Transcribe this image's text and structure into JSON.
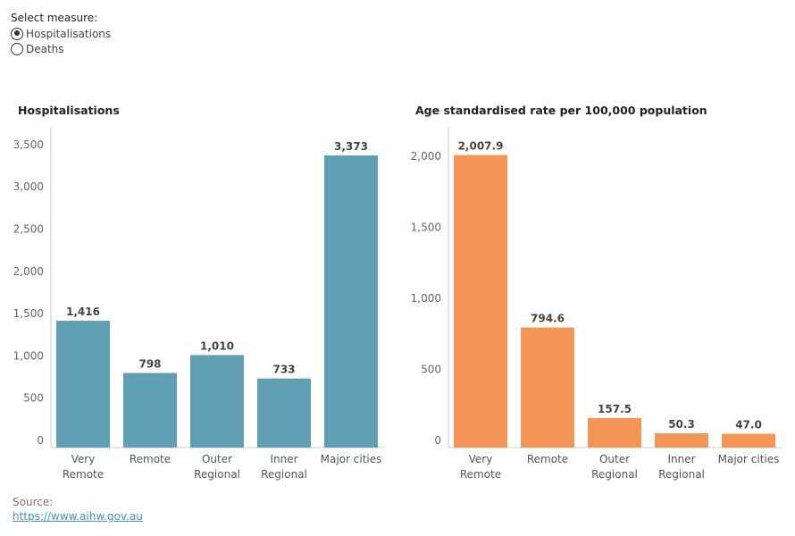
{
  "controls": {
    "title": "Select measure:",
    "options": [
      {
        "label": "Hospitalisations",
        "selected": true
      },
      {
        "label": "Deaths",
        "selected": false
      }
    ]
  },
  "chart_data": [
    {
      "type": "bar",
      "title": "Hospitalisations",
      "categories": [
        [
          "Very",
          "Remote"
        ],
        [
          "Remote"
        ],
        [
          "Outer",
          "Regional"
        ],
        [
          "Inner",
          "Regional"
        ],
        [
          "Major cities"
        ]
      ],
      "values": [
        1416,
        798,
        1010,
        733,
        3373
      ],
      "value_labels": [
        "1,416",
        "798",
        "1,010",
        "733",
        "3,373"
      ],
      "yticks": [
        0,
        500,
        1000,
        1500,
        2000,
        2500,
        3000,
        3500
      ],
      "ytick_labels": [
        "0",
        "500",
        "1,000",
        "1,500",
        "2,000",
        "2,500",
        "3,000",
        "3,500"
      ],
      "ylim": [
        0,
        3700
      ],
      "color": "#619fb4"
    },
    {
      "type": "bar",
      "title": "Age standardised rate per 100,000 population",
      "categories": [
        [
          "Very",
          "Remote"
        ],
        [
          "Remote"
        ],
        [
          "Outer",
          "Regional"
        ],
        [
          "Inner",
          "Regional"
        ],
        [
          "Major cities"
        ]
      ],
      "values": [
        2007.9,
        794.6,
        157.5,
        50.3,
        47.0
      ],
      "value_labels": [
        "2,007.9",
        "794.6",
        "157.5",
        "50.3",
        "47.0"
      ],
      "yticks": [
        0,
        500,
        1000,
        1500,
        2000
      ],
      "ytick_labels": [
        "0",
        "500",
        "1,000",
        "1,500",
        "2,000"
      ],
      "ylim": [
        0,
        2200
      ],
      "color": "#f49658"
    }
  ],
  "source": {
    "label": "Source:",
    "link": "https://www.aihw.gov.au"
  }
}
